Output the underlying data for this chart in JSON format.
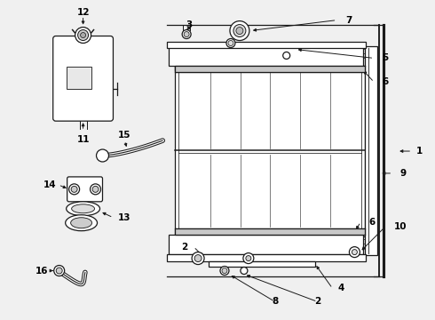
{
  "bg_color": "#f0f0f0",
  "line_color": "#1a1a1a",
  "label_color": "#000000",
  "fig_w": 4.9,
  "fig_h": 3.6,
  "dpi": 100
}
